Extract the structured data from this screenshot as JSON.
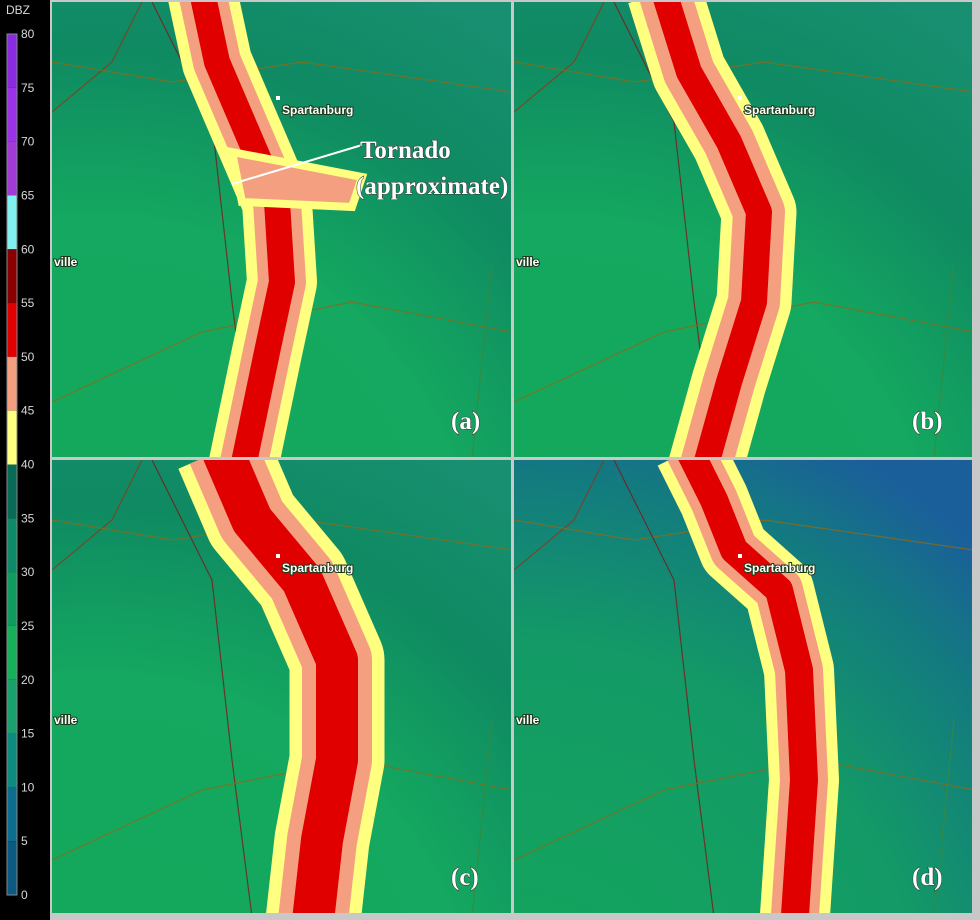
{
  "legend": {
    "title": "DBZ",
    "ticks": [
      "80",
      "75",
      "70",
      "65",
      "60",
      "55",
      "50",
      "45",
      "40",
      "35",
      "30",
      "25",
      "20",
      "15",
      "10",
      "5",
      "0"
    ]
  },
  "panels": [
    {
      "label": "(a)",
      "cities": [
        "Spartanburg",
        "ville"
      ],
      "annotation": [
        "Tornado",
        "(approximate)"
      ]
    },
    {
      "label": "(b)",
      "cities": [
        "Spartanburg",
        "ville"
      ]
    },
    {
      "label": "(c)",
      "cities": [
        "Spartanburg",
        "ville"
      ]
    },
    {
      "label": "(d)",
      "cities": [
        "Spartanburg",
        "ville"
      ]
    }
  ]
}
